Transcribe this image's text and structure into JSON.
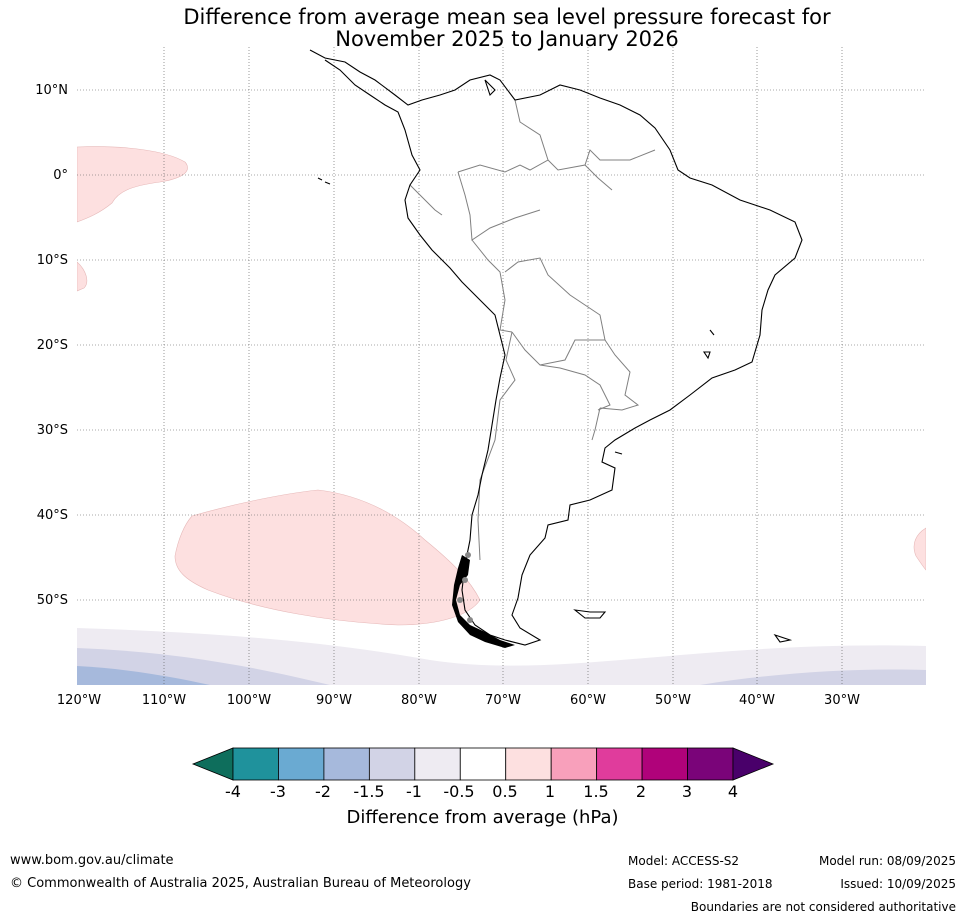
{
  "title_line1": "Difference from average mean sea level pressure forecast for",
  "title_line2": "November 2025 to January 2026",
  "lat_labels": [
    "10°N",
    "0°",
    "10°S",
    "20°S",
    "30°S",
    "40°S",
    "50°S"
  ],
  "lon_labels": [
    "120°W",
    "110°W",
    "100°W",
    "90°W",
    "80°W",
    "70°W",
    "60°W",
    "50°W",
    "40°W",
    "30°W"
  ],
  "colorbar": {
    "label": "Difference from average (hPa)",
    "ticks": [
      "-4",
      "-3",
      "-2",
      "-1.5",
      "-1",
      "-0.5",
      "0.5",
      "1",
      "1.5",
      "2",
      "3",
      "4"
    ],
    "colors": [
      "#0e6e5c",
      "#1f929c",
      "#6aaad2",
      "#a6b9dc",
      "#d2d3e6",
      "#eeebf2",
      "#ffffff",
      "#fde0e0",
      "#f8a0bb",
      "#e03c9c",
      "#b0027a",
      "#7a0479",
      "#49006a"
    ]
  },
  "footer": {
    "website": "www.bom.gov.au/climate",
    "copyright": "© Commonwealth of Australia 2025, Australian Bureau of Meteorology",
    "model": "Model: ACCESS-S2",
    "base_period": "Base period: 1981-2018",
    "model_run": "Model run: 08/09/2025",
    "issued": "Issued: 10/09/2025",
    "disclaimer": "Boundaries are not considered authoritative"
  }
}
